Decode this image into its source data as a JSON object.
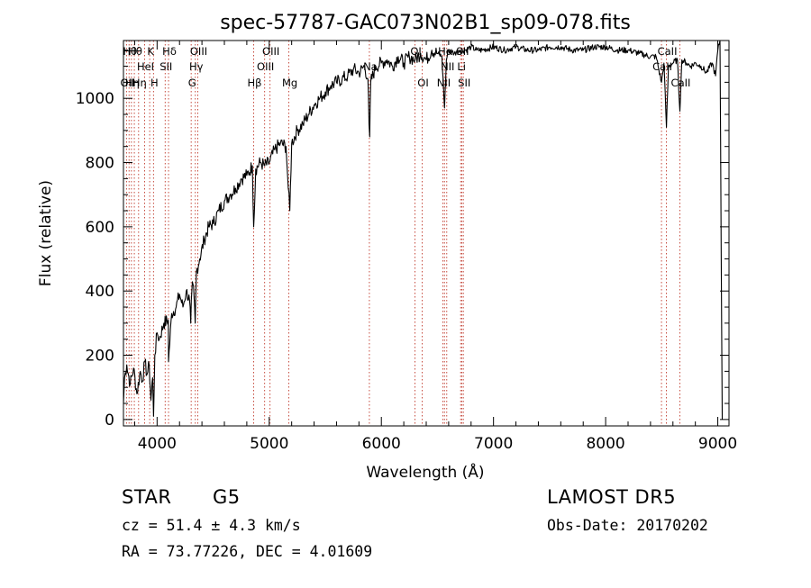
{
  "chart_data": {
    "type": "line",
    "title": "spec-57787-GAC073N02B1_sp09-078.fits",
    "xlabel": "Wavelength (Å)",
    "ylabel": "Flux (relative)",
    "xlim": [
      3700,
      9100
    ],
    "ylim": [
      -20,
      1180
    ],
    "x_ticks": [
      4000,
      5000,
      6000,
      7000,
      8000,
      9000
    ],
    "x_tick_labels": [
      "4000",
      "5000",
      "6000",
      "7000",
      "8000",
      "9000"
    ],
    "y_ticks": [
      0,
      200,
      400,
      600,
      800,
      1000
    ],
    "y_tick_labels": [
      "0",
      "200",
      "400",
      "600",
      "800",
      "1000"
    ],
    "grid": false,
    "series": [
      {
        "x": [
          3700,
          3710,
          3730,
          3760,
          3790,
          3820,
          3850,
          3870,
          3890,
          3910,
          3930,
          3945,
          3960,
          3968,
          3980,
          4000,
          4020,
          4060,
          4100,
          4102,
          4130,
          4170,
          4200,
          4230,
          4260,
          4290,
          4300,
          4310,
          4320,
          4330,
          4340,
          4350,
          4380,
          4420,
          4460,
          4500,
          4550,
          4600,
          4650,
          4700,
          4750,
          4800,
          4850,
          4861,
          4880,
          4920,
          4960,
          5000,
          5050,
          5100,
          5150,
          5170,
          5183,
          5200,
          5250,
          5300,
          5350,
          5400,
          5450,
          5500,
          5550,
          5600,
          5650,
          5700,
          5750,
          5800,
          5850,
          5880,
          5890,
          5896,
          5905,
          5950,
          6000,
          6050,
          6100,
          6150,
          6200,
          6250,
          6300,
          6350,
          6400,
          6450,
          6500,
          6540,
          6563,
          6580,
          6600,
          6650,
          6700,
          6750,
          6800,
          6850,
          6900,
          7000,
          7100,
          7200,
          7300,
          7400,
          7500,
          7600,
          7700,
          7800,
          7900,
          8000,
          8100,
          8200,
          8300,
          8400,
          8450,
          8498,
          8520,
          8542,
          8560,
          8600,
          8640,
          8662,
          8680,
          8720,
          8760,
          8800,
          8850,
          8900,
          8950,
          8980,
          9000,
          9020,
          9030,
          9040
        ],
        "values": [
          50,
          130,
          170,
          110,
          160,
          80,
          150,
          120,
          180,
          140,
          170,
          60,
          130,
          10,
          200,
          270,
          250,
          300,
          310,
          180,
          330,
          350,
          390,
          350,
          400,
          370,
          300,
          400,
          420,
          380,
          300,
          460,
          500,
          560,
          600,
          610,
          650,
          680,
          700,
          720,
          750,
          760,
          790,
          600,
          780,
          800,
          790,
          800,
          840,
          860,
          850,
          720,
          650,
          860,
          900,
          920,
          950,
          980,
          1000,
          1020,
          1040,
          1050,
          1060,
          1070,
          1090,
          1080,
          1100,
          1060,
          920,
          880,
          1050,
          1100,
          1110,
          1120,
          1100,
          1130,
          1110,
          1130,
          1120,
          1140,
          1120,
          1150,
          1140,
          1130,
          970,
          1120,
          1150,
          1140,
          1150,
          1150,
          1160,
          1150,
          1150,
          1160,
          1150,
          1160,
          1150,
          1150,
          1160,
          1160,
          1150,
          1150,
          1160,
          1160,
          1150,
          1150,
          1140,
          1130,
          1130,
          1050,
          1110,
          910,
          1100,
          1110,
          1120,
          960,
          1120,
          1110,
          1100,
          1110,
          1100,
          1080,
          1110,
          1070,
          1150,
          1180,
          540,
          0
        ]
      }
    ],
    "lines": [
      {
        "x": 3727,
        "label": "OII",
        "row": 2
      },
      {
        "x": 3750,
        "label": "Hθ",
        "row": 0
      },
      {
        "x": 3771,
        "label": "Hη",
        "row": 2
      },
      {
        "x": 3797,
        "label": "Hθ",
        "row": 0
      },
      {
        "x": 3835,
        "label": "Hη",
        "row": 2
      },
      {
        "x": 3889,
        "label": "HeI",
        "row": 1
      },
      {
        "x": 3934,
        "label": "K",
        "row": 0
      },
      {
        "x": 3968,
        "label": "H",
        "row": 2
      },
      {
        "x": 4072,
        "label": "SII",
        "row": 1
      },
      {
        "x": 4102,
        "label": "Hδ",
        "row": 0
      },
      {
        "x": 4304,
        "label": "G",
        "row": 2
      },
      {
        "x": 4341,
        "label": "Hγ",
        "row": 1
      },
      {
        "x": 4363,
        "label": "OIII",
        "row": 0
      },
      {
        "x": 4861,
        "label": "Hβ",
        "row": 2
      },
      {
        "x": 4959,
        "label": "OIII",
        "row": 1
      },
      {
        "x": 5007,
        "label": "OIII",
        "row": 0
      },
      {
        "x": 5175,
        "label": "Mg",
        "row": 2
      },
      {
        "x": 5893,
        "label": "Na",
        "row": 1
      },
      {
        "x": 6300,
        "label": "OI",
        "row": 0
      },
      {
        "x": 6364,
        "label": "OI",
        "row": 2
      },
      {
        "x": 6548,
        "label": "NII",
        "row": 2
      },
      {
        "x": 6563,
        "label": "Hα",
        "row": 0
      },
      {
        "x": 6583,
        "label": "NII",
        "row": 1
      },
      {
        "x": 6707,
        "label": "Li",
        "row": 1
      },
      {
        "x": 6717,
        "label": "SII",
        "row": 0
      },
      {
        "x": 6731,
        "label": "SII",
        "row": 2
      },
      {
        "x": 8498,
        "label": "CaII",
        "row": 1
      },
      {
        "x": 8542,
        "label": "CaII",
        "row": 0
      },
      {
        "x": 8662,
        "label": "CaII",
        "row": 2
      }
    ]
  },
  "info": {
    "object_class": "STAR",
    "subclass": "G5",
    "survey": "LAMOST DR5",
    "redshift": "cz = 51.4 ± 4.3 km/s",
    "obs_date": "Obs-Date: 20170202",
    "coords": "RA =  73.77226, DEC =   4.01609"
  }
}
